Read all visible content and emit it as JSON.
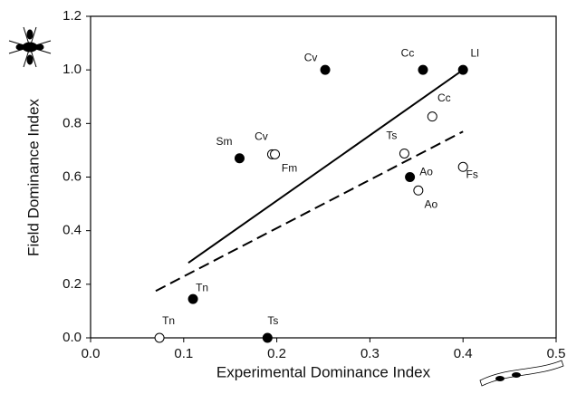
{
  "chart_data": {
    "type": "scatter",
    "xlabel": "Experimental Dominance Index",
    "ylabel": "Field Dominance Index",
    "xlim": [
      0,
      0.5
    ],
    "xticks": [
      {
        "value": 0,
        "label": "0.0"
      },
      0.1,
      0.2,
      0.3,
      0.4,
      0.5
    ],
    "ylim": [
      0,
      1.2
    ],
    "yticks": [
      {
        "value": 0,
        "label": "0.0"
      },
      0.2,
      0.4,
      0.6,
      0.8,
      {
        "value": 1,
        "label": "1.0"
      },
      1.2
    ],
    "series": [
      {
        "color": "#000000",
        "filled": true,
        "x": [
          0.252,
          0.357,
          0.4,
          0.16,
          0.343,
          0.11,
          0.19
        ],
        "values": [
          1.0,
          1.0,
          1.0,
          0.67,
          0.6,
          0.145,
          0.0
        ],
        "point_labels": [
          "Cv",
          "Cc",
          "Ll",
          "Sm",
          "Ao",
          "Tn",
          "Ts"
        ]
      },
      {
        "color": "#000000",
        "filled": false,
        "x": [
          0.074,
          0.195,
          0.198,
          0.337,
          0.367,
          0.4,
          0.352
        ],
        "values": [
          0.0,
          0.685,
          0.685,
          0.688,
          0.826,
          0.638,
          0.55
        ],
        "point_labels": [
          "Tn",
          "Cv",
          "Fm",
          "Ts",
          "Cc",
          "Fs",
          "Ao"
        ]
      }
    ],
    "fit_lines": [
      {
        "dash": false,
        "x": [
          0.105,
          0.4
        ],
        "values": [
          0.28,
          1.0
        ]
      },
      {
        "dash": true,
        "x": [
          0.07,
          0.4
        ],
        "values": [
          0.175,
          0.77
        ]
      }
    ]
  }
}
